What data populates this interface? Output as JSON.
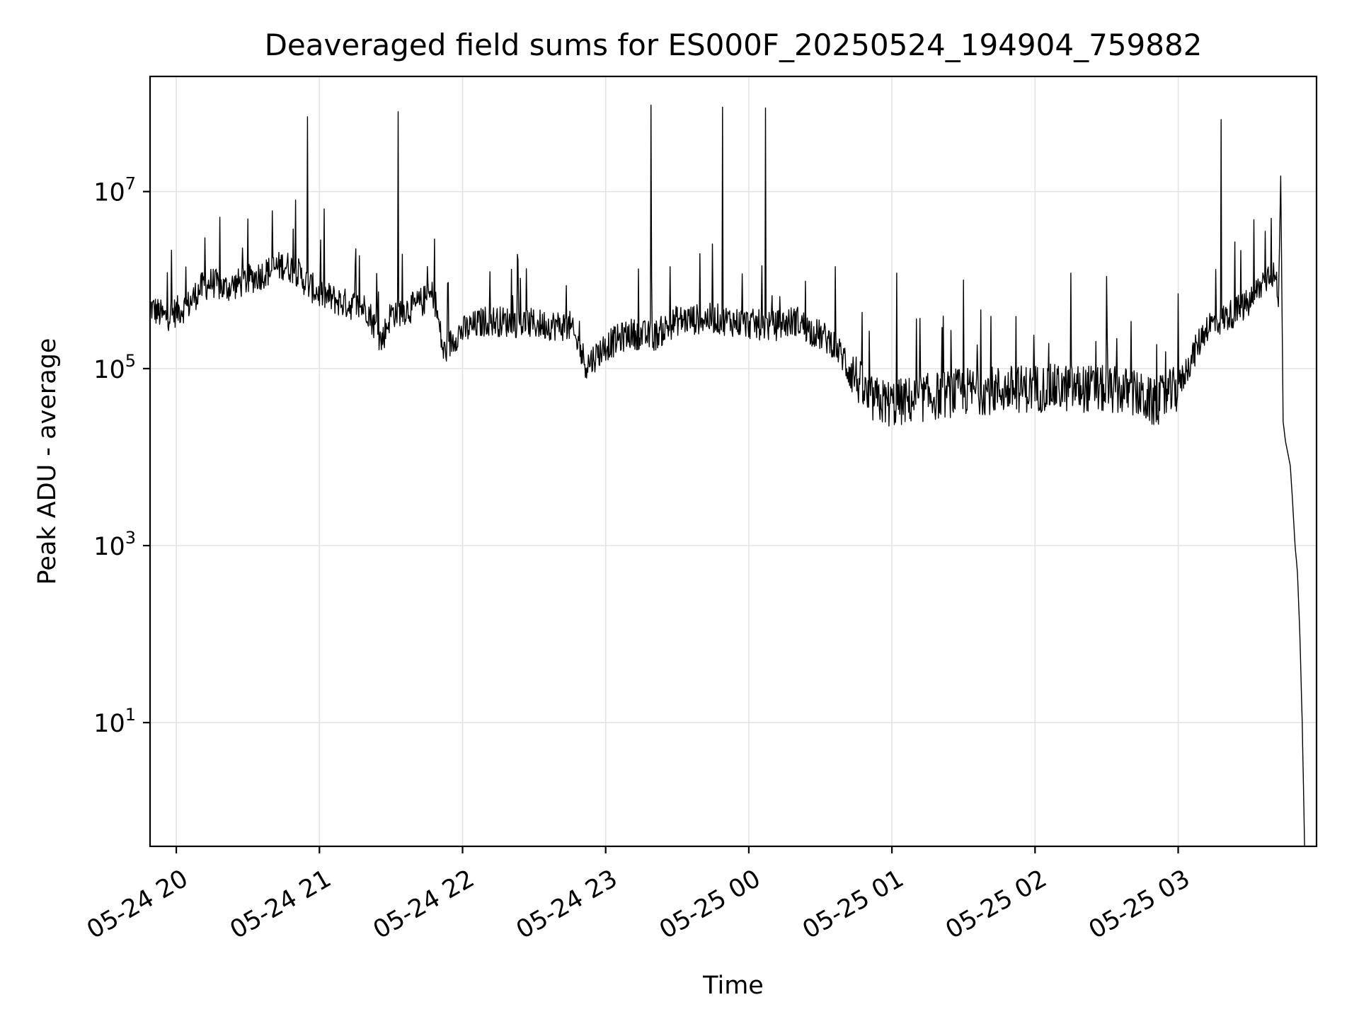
{
  "chart_data": {
    "type": "line",
    "title": "Deaveraged field sums for ES000F_20250524_194904_759882",
    "xlabel": "Time",
    "ylabel": "Peak ADU - average",
    "yscale": "log",
    "ylim": [
      0.4,
      200000000
    ],
    "xlim": [
      "2025-05-24 19:49",
      "2025-05-25 03:58"
    ],
    "grid": true,
    "colors": {
      "series": "#000000",
      "grid": "#e3e3e3",
      "axes": "#000000"
    },
    "x_ticks": [
      {
        "t": "2025-05-24 20:00",
        "label": "05-24 20"
      },
      {
        "t": "2025-05-24 21:00",
        "label": "05-24 21"
      },
      {
        "t": "2025-05-24 22:00",
        "label": "05-24 22"
      },
      {
        "t": "2025-05-24 23:00",
        "label": "05-24 23"
      },
      {
        "t": "2025-05-25 00:00",
        "label": "05-25 00"
      },
      {
        "t": "2025-05-25 01:00",
        "label": "05-25 01"
      },
      {
        "t": "2025-05-25 02:00",
        "label": "05-25 02"
      },
      {
        "t": "2025-05-25 03:00",
        "label": "05-25 03"
      }
    ],
    "y_ticks": [
      {
        "value": 10,
        "base": "10",
        "exp": "1"
      },
      {
        "value": 1000,
        "base": "10",
        "exp": "3"
      },
      {
        "value": 100000,
        "base": "10",
        "exp": "5"
      },
      {
        "value": 10000000,
        "base": "10",
        "exp": "7"
      }
    ],
    "series": [
      {
        "trend": [
          [
            "2025-05-24 19:49",
            500000
          ],
          [
            "2025-05-24 19:55",
            380000
          ],
          [
            "2025-05-24 20:00",
            440000
          ],
          [
            "2025-05-24 20:05",
            520000
          ],
          [
            "2025-05-24 20:10",
            800000
          ],
          [
            "2025-05-24 20:15",
            950000
          ],
          [
            "2025-05-24 20:20",
            800000
          ],
          [
            "2025-05-24 20:30",
            1000000
          ],
          [
            "2025-05-24 20:40",
            1300000
          ],
          [
            "2025-05-24 20:45",
            1500000
          ],
          [
            "2025-05-24 20:50",
            1300000
          ],
          [
            "2025-05-24 20:55",
            900000
          ],
          [
            "2025-05-24 21:00",
            700000
          ],
          [
            "2025-05-24 21:10",
            550000
          ],
          [
            "2025-05-24 21:20",
            480000
          ],
          [
            "2025-05-24 21:26",
            200000
          ],
          [
            "2025-05-24 21:30",
            420000
          ],
          [
            "2025-05-24 21:40",
            500000
          ],
          [
            "2025-05-24 21:48",
            700000
          ],
          [
            "2025-05-24 21:52",
            150000
          ],
          [
            "2025-05-24 21:58",
            250000
          ],
          [
            "2025-05-24 22:10",
            350000
          ],
          [
            "2025-05-24 22:30",
            320000
          ],
          [
            "2025-05-24 22:45",
            300000
          ],
          [
            "2025-05-24 22:52",
            110000
          ],
          [
            "2025-05-24 23:00",
            180000
          ],
          [
            "2025-05-24 23:10",
            250000
          ],
          [
            "2025-05-24 23:20",
            230000
          ],
          [
            "2025-05-24 23:30",
            350000
          ],
          [
            "2025-05-24 23:45",
            370000
          ],
          [
            "2025-05-25 00:00",
            320000
          ],
          [
            "2025-05-25 00:10",
            300000
          ],
          [
            "2025-05-25 00:20",
            350000
          ],
          [
            "2025-05-25 00:25",
            280000
          ],
          [
            "2025-05-25 00:35",
            200000
          ],
          [
            "2025-05-25 00:45",
            80000
          ],
          [
            "2025-05-25 00:50",
            45000
          ],
          [
            "2025-05-25 01:00",
            40000
          ],
          [
            "2025-05-25 01:10",
            45000
          ],
          [
            "2025-05-25 01:30",
            55000
          ],
          [
            "2025-05-25 02:00",
            60000
          ],
          [
            "2025-05-25 02:20",
            60000
          ],
          [
            "2025-05-25 02:40",
            55000
          ],
          [
            "2025-05-25 02:50",
            40000
          ],
          [
            "2025-05-25 03:00",
            60000
          ],
          [
            "2025-05-25 03:05",
            120000
          ],
          [
            "2025-05-25 03:12",
            300000
          ],
          [
            "2025-05-25 03:20",
            380000
          ],
          [
            "2025-05-25 03:30",
            550000
          ],
          [
            "2025-05-25 03:35",
            900000
          ],
          [
            "2025-05-25 03:39",
            1300000
          ],
          [
            "2025-05-25 03:41",
            1000000
          ],
          [
            "2025-05-25 03:42",
            500000
          ],
          [
            "2025-05-25 03:43",
            15000000
          ],
          [
            "2025-05-25 03:44",
            25000
          ],
          [
            "2025-05-25 03:45",
            15000
          ],
          [
            "2025-05-25 03:47",
            8000
          ],
          [
            "2025-05-25 03:48",
            3000
          ],
          [
            "2025-05-25 03:49",
            1000
          ],
          [
            "2025-05-25 03:50",
            500
          ],
          [
            "2025-05-25 03:51",
            100
          ],
          [
            "2025-05-25 03:52",
            10
          ],
          [
            "2025-05-25 03:53",
            0.4
          ]
        ],
        "spikes": [
          [
            "2025-05-24 20:12",
            3000000
          ],
          [
            "2025-05-24 20:55",
            70000000
          ],
          [
            "2025-05-24 21:33",
            80000000
          ],
          [
            "2025-05-24 23:19",
            95000000
          ],
          [
            "2025-05-24 23:49",
            90000000
          ],
          [
            "2025-05-25 00:07",
            88000000
          ],
          [
            "2025-05-25 01:02",
            1200000
          ],
          [
            "2025-05-25 01:30",
            1000000
          ],
          [
            "2025-05-25 02:15",
            1200000
          ],
          [
            "2025-05-25 02:30",
            1100000
          ],
          [
            "2025-05-25 03:00",
            700000
          ],
          [
            "2025-05-25 03:18",
            65000000
          ],
          [
            "2025-05-25 03:39",
            5000000
          ]
        ]
      }
    ]
  }
}
